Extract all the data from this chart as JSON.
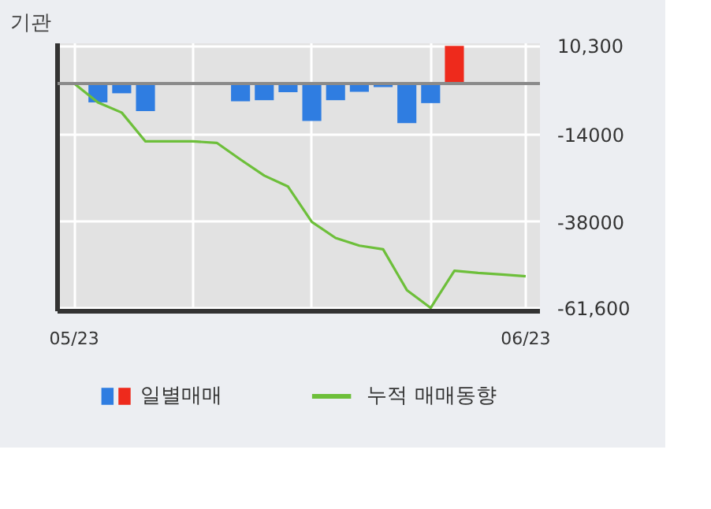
{
  "chart_data": {
    "type": "bar",
    "title": "기관",
    "categories": [
      "05/23",
      null,
      null,
      null,
      null,
      null,
      null,
      null,
      null,
      null,
      null,
      null,
      null,
      null,
      null,
      null,
      null,
      null,
      null,
      "06/23"
    ],
    "series": [
      {
        "name": "일별매매",
        "colors": [
          null,
          "#2f7de1",
          "#2f7de1",
          "#2f7de1",
          null,
          null,
          null,
          "#2f7de1",
          "#2f7de1",
          "#2f7de1",
          "#2f7de1",
          "#2f7de1",
          "#2f7de1",
          "#2f7de1",
          "#2f7de1",
          "#2f7de1",
          "#ee2a1c",
          null,
          null,
          null
        ],
        "values": [
          null,
          -5200,
          -2700,
          -7600,
          null,
          null,
          null,
          -4900,
          -4600,
          -2400,
          -10300,
          -4600,
          -2300,
          -1000,
          -10900,
          -5400,
          10300,
          null,
          null,
          null
        ]
      },
      {
        "name": "누적 매매동향",
        "type": "line",
        "color": "#6dbf3a",
        "values": [
          0,
          -5200,
          -8000,
          -15900,
          -15900,
          -15900,
          -16300,
          -20900,
          -25300,
          -28300,
          -38000,
          -42400,
          -44500,
          -45500,
          -56700,
          -61600,
          -51400,
          -52000,
          -52400,
          -52900
        ]
      }
    ],
    "ylim": [
      -62500,
      11000
    ],
    "yticks": [
      {
        "value": 10300,
        "label": "10,300"
      },
      {
        "value": -14000,
        "label": "-14000"
      },
      {
        "value": -38000,
        "label": "-38000"
      },
      {
        "value": -61600,
        "label": "-61,600"
      }
    ],
    "grid": true,
    "legend": "bottom"
  }
}
